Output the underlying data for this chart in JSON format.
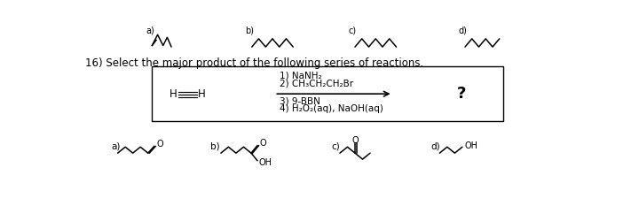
{
  "bg_color": "#ffffff",
  "text_color": "#000000",
  "question_text": "16) Select the major product of the following series of reactions.",
  "reactions_above": [
    "1) NaNH₂",
    "2) CH₃CH₂CH₂Br"
  ],
  "reactions_below": [
    "3) 9-BBN",
    "4) H₂O₂(aq), NaOH(aq)"
  ],
  "question_mark": "?",
  "top_labels": [
    "a)",
    "b)",
    "c)",
    "d)"
  ],
  "bottom_labels": [
    "a)",
    "b)",
    "c)",
    "d)"
  ],
  "figsize": [
    7.2,
    2.24
  ],
  "dpi": 100
}
